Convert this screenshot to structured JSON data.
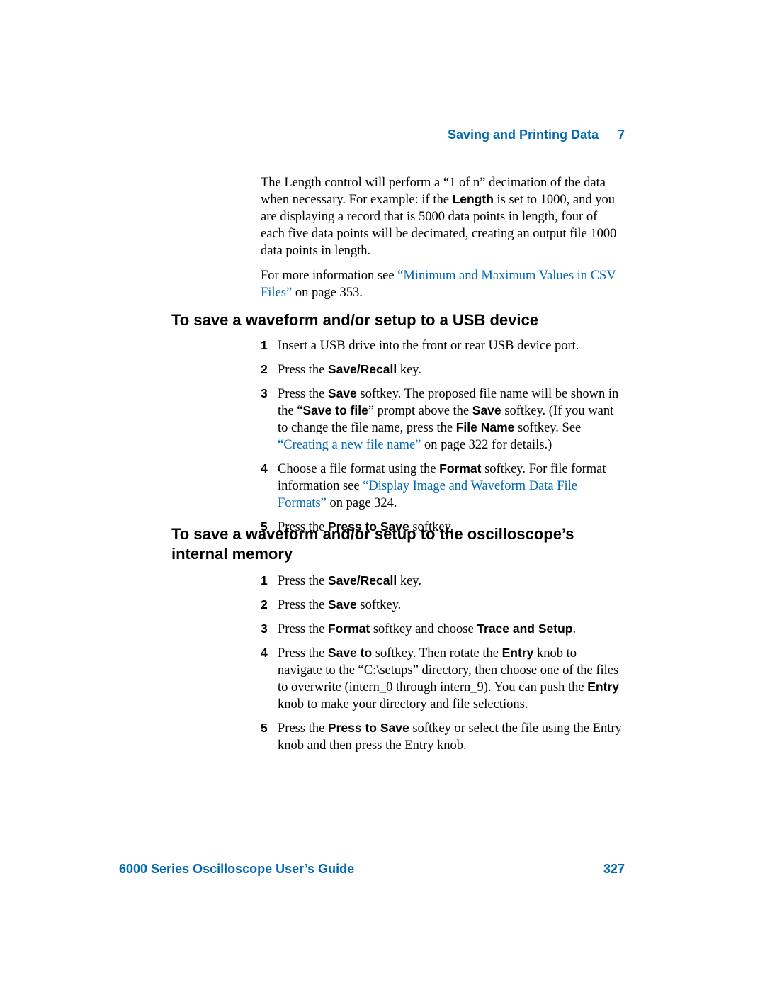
{
  "header": {
    "title": "Saving and Printing Data",
    "chapter": "7"
  },
  "intro": {
    "para1_a": "The Length control will perform a “1 of n” decimation of the data when necessary. For example: if the ",
    "para1_bold": "Length",
    "para1_b": " is set to 1000, and you are displaying a record that is 5000 data points in length, four of each five data points will be decimated, creating an output file 1000 data points in length.",
    "para2_a": "For more information see ",
    "para2_link": "“Minimum and Maximum Values in CSV Files”",
    "para2_b": " on page 353."
  },
  "section1": {
    "heading": "To save a waveform and/or setup to a USB device",
    "steps": [
      {
        "n": "1",
        "t1": "Insert a USB drive into the front or rear USB device port."
      },
      {
        "n": "2",
        "t1": "Press the ",
        "b1": "Save/Recall",
        "t2": " key."
      },
      {
        "n": "3",
        "t1": "Press the ",
        "b1": "Save",
        "t2": " softkey. The proposed file name will be shown in the “",
        "b2": "Save to file",
        "t3": "” prompt above the ",
        "b3": "Save",
        "t4": " softkey. (If you want to change the file name, press the ",
        "b4": "File Name",
        "t5": " softkey. See ",
        "link": "“Creating a new file name”",
        "t6": " on page 322 for details.)"
      },
      {
        "n": "4",
        "t1": "Choose a file format using the ",
        "b1": "Format",
        "t2": " softkey. For file format information see ",
        "link": "“Display Image and Waveform Data File Formats”",
        "t3": " on page 324."
      },
      {
        "n": "5",
        "t1": "Press the ",
        "b1": "Press to Save",
        "t2": " softkey."
      }
    ]
  },
  "section2": {
    "heading": "To save a waveform and/or setup to the oscilloscope’s internal memory",
    "steps": [
      {
        "n": "1",
        "t1": "Press the ",
        "b1": "Save/Recall",
        "t2": " key."
      },
      {
        "n": "2",
        "t1": "Press the ",
        "b1": "Save",
        "t2": " softkey."
      },
      {
        "n": "3",
        "t1": "Press the ",
        "b1": "Format",
        "t2": " softkey and choose ",
        "b2": "Trace and Setup",
        "t3": "."
      },
      {
        "n": "4",
        "t1": "Press the ",
        "b1": "Save to",
        "t2": " softkey. Then rotate the ",
        "b2": "Entry",
        "t3": " knob to navigate to the “C:\\setups” directory, then choose one of the files to overwrite (intern_0 through intern_9). You can push the ",
        "b3": "Entry",
        "t4": " knob to make your directory and file selections."
      },
      {
        "n": "5",
        "t1": "Press the ",
        "b1": "Press to Save",
        "t2": " softkey or select the file using the Entry knob and then press the Entry knob."
      }
    ]
  },
  "footer": {
    "guide": "6000 Series Oscilloscope User’s Guide",
    "page": "327"
  },
  "colors": {
    "link": "#0068b3",
    "text": "#000000",
    "background": "#ffffff"
  }
}
